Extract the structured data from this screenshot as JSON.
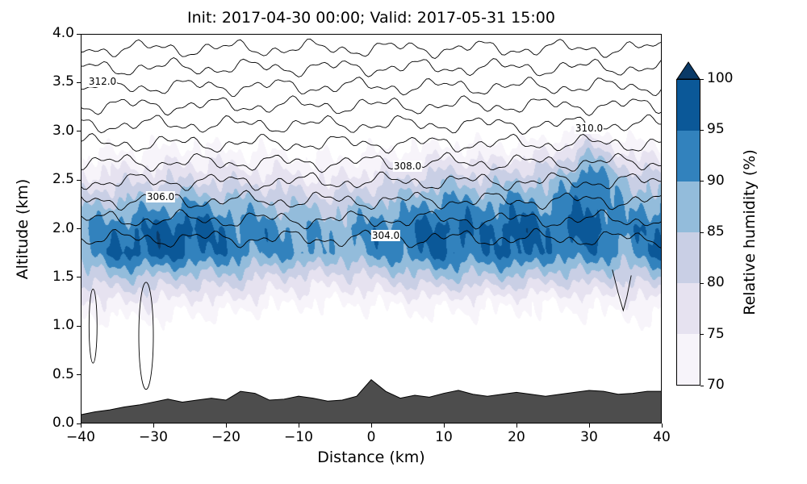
{
  "title": "Init: 2017-04-30 00:00; Valid: 2017-05-31 15:00",
  "x_axis": {
    "label": "Distance (km)",
    "tick_values": [
      -40,
      -30,
      -20,
      -10,
      0,
      10,
      20,
      30,
      40
    ],
    "tick_labels": [
      "−40",
      "−30",
      "−20",
      "−10",
      "0",
      "10",
      "20",
      "30",
      "40"
    ]
  },
  "y_axis": {
    "label": "Altitude (km)",
    "tick_values": [
      0,
      0.5,
      1,
      1.5,
      2,
      2.5,
      3,
      3.5,
      4
    ],
    "tick_labels": [
      "0.0",
      "0.5",
      "1.0",
      "1.5",
      "2.0",
      "2.5",
      "3.0",
      "3.5",
      "4.0"
    ]
  },
  "colorbar": {
    "label": "Relative humidity (%)",
    "tick_values": [
      70,
      75,
      80,
      85,
      90,
      95,
      100
    ],
    "tick_labels": [
      "70",
      "75",
      "80",
      "85",
      "90",
      "95",
      "100"
    ],
    "band_colors": [
      "#f7f4fa",
      "#e6e2f0",
      "#c9cfe5",
      "#93bcdb",
      "#3282bd",
      "#0b5898"
    ],
    "over_color": "#0a3a67",
    "extend": "max"
  },
  "chart_data": {
    "type": "filled-contour",
    "x_range": [
      -40,
      40
    ],
    "y_range": [
      0,
      4
    ],
    "fill_field": "relative_humidity_percent",
    "fill_levels": [
      70,
      75,
      80,
      85,
      90,
      95,
      100
    ],
    "rh_grid": {
      "x_start": -40,
      "x_step": 5,
      "z_start": 0,
      "z_step": 0.25,
      "values": [
        [
          55,
          55,
          55,
          55,
          55,
          55,
          55,
          55,
          55,
          55,
          55,
          55,
          55,
          55,
          55,
          55,
          55
        ],
        [
          56,
          56,
          56,
          56,
          56,
          56,
          56,
          56,
          56,
          56,
          56,
          56,
          56,
          56,
          56,
          56,
          56
        ],
        [
          58,
          58,
          58,
          58,
          58,
          58,
          58,
          58,
          58,
          58,
          58,
          58,
          58,
          58,
          58,
          58,
          58
        ],
        [
          61,
          61,
          61,
          61,
          61,
          61,
          61,
          61,
          61,
          61,
          61,
          61,
          61,
          61,
          61,
          61,
          61
        ],
        [
          67,
          68,
          68,
          67,
          66,
          65,
          64,
          64,
          65,
          66,
          66,
          67,
          66,
          66,
          67,
          68,
          68
        ],
        [
          73,
          75,
          75,
          73,
          74,
          72,
          71,
          70,
          71,
          72,
          73,
          72,
          72,
          71,
          72,
          73,
          74
        ],
        [
          81,
          85,
          84,
          83,
          84,
          80,
          79,
          78,
          80,
          83,
          85,
          84,
          84,
          82,
          83,
          81,
          85
        ],
        [
          89,
          96,
          97,
          96,
          93,
          90,
          92,
          87,
          91,
          93,
          96,
          93,
          97,
          92,
          94,
          89,
          96
        ],
        [
          90,
          93,
          96,
          98,
          94,
          92,
          90,
          88,
          92,
          94,
          97,
          94,
          98,
          94,
          97,
          92,
          95
        ],
        [
          84,
          86,
          88,
          90,
          88,
          86,
          84,
          83,
          86,
          88,
          92,
          90,
          92,
          90,
          96,
          88,
          90
        ],
        [
          76,
          78,
          79,
          80,
          79,
          78,
          76,
          75,
          78,
          80,
          84,
          82,
          84,
          84,
          95,
          85,
          82
        ],
        [
          70,
          71,
          72,
          73,
          72,
          71,
          70,
          69,
          71,
          72,
          74,
          73,
          74,
          76,
          86,
          76,
          73
        ],
        [
          64,
          65,
          65,
          66,
          65,
          64,
          63,
          63,
          64,
          65,
          66,
          66,
          66,
          67,
          72,
          67,
          65
        ],
        [
          60,
          60,
          60,
          60,
          60,
          60,
          60,
          60,
          60,
          60,
          60,
          60,
          60,
          60,
          60,
          60,
          60
        ],
        [
          56,
          56,
          56,
          56,
          56,
          56,
          56,
          56,
          56,
          56,
          56,
          56,
          56,
          56,
          56,
          56,
          56
        ],
        [
          53,
          53,
          53,
          53,
          53,
          53,
          53,
          53,
          53,
          53,
          53,
          53,
          53,
          53,
          53,
          53,
          53
        ],
        [
          50,
          50,
          50,
          50,
          50,
          50,
          50,
          50,
          50,
          50,
          50,
          50,
          50,
          50,
          50,
          50,
          50
        ]
      ]
    },
    "line_field": "potential_temperature_K",
    "theta_levels": [
      304,
      305,
      306,
      307,
      308,
      309,
      310,
      311,
      312,
      313,
      314
    ],
    "theta_profile": {
      "level0": 304,
      "z0_km": 1.9,
      "km_per_K": 0.195
    },
    "theta_labels": [
      {
        "text": "312.0",
        "level": 312,
        "x": -37
      },
      {
        "text": "310.0",
        "level": 310,
        "x": 30
      },
      {
        "text": "308.0",
        "level": 308,
        "x": 5
      },
      {
        "text": "306.0",
        "level": 306,
        "x": -29
      },
      {
        "text": "304.0",
        "level": 304,
        "x": 2
      }
    ],
    "closed_contours": [
      {
        "cx": -38.3,
        "cz": 1.0,
        "rx": 0.55,
        "rz": 0.38
      },
      {
        "cx": -31.0,
        "cz": 0.9,
        "rx": 1.0,
        "rz": 0.55
      }
    ],
    "dip_polyline": [
      [
        33.2,
        1.58
      ],
      [
        34.0,
        1.34
      ],
      [
        34.7,
        1.16
      ],
      [
        35.2,
        1.3
      ],
      [
        35.8,
        1.52
      ]
    ],
    "terrain": {
      "x_start": -40,
      "x_step": 2,
      "color": "#4d4d4d",
      "heights_km": [
        0.09,
        0.12,
        0.14,
        0.17,
        0.19,
        0.22,
        0.25,
        0.22,
        0.24,
        0.26,
        0.24,
        0.33,
        0.31,
        0.24,
        0.25,
        0.28,
        0.26,
        0.23,
        0.24,
        0.28,
        0.45,
        0.33,
        0.26,
        0.29,
        0.27,
        0.31,
        0.34,
        0.3,
        0.28,
        0.3,
        0.32,
        0.3,
        0.28,
        0.3,
        0.32,
        0.34,
        0.33,
        0.3,
        0.31,
        0.33,
        0.33
      ]
    }
  }
}
